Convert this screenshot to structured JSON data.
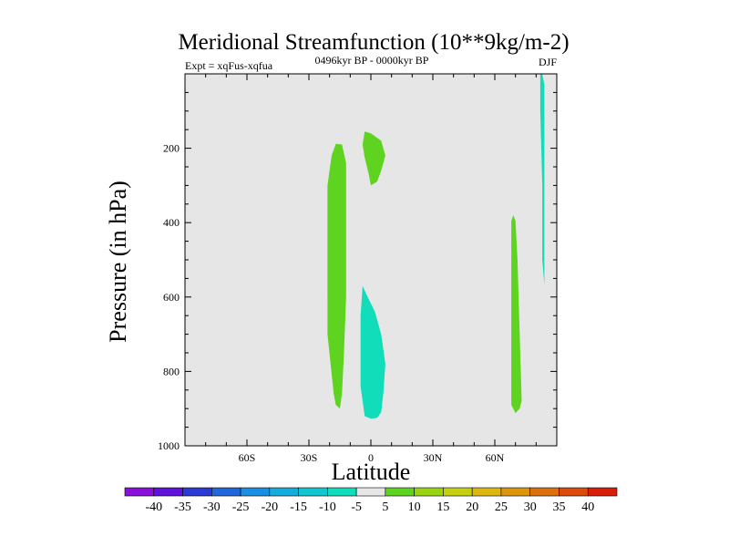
{
  "chart_data": {
    "type": "contour",
    "title": "Meridional Streamfunction (10**9kg/m-2)",
    "subtitle_left": "Expt = xqFus-xqfua",
    "subtitle_center": "0496kyr BP - 0000kyr BP",
    "subtitle_right": "DJF",
    "xlabel": "Latitude",
    "ylabel": "Pressure (in hPa)",
    "xlim": [
      -90,
      90
    ],
    "ylim": [
      1000,
      0
    ],
    "x_ticks": [
      {
        "value": -60,
        "label": "60S"
      },
      {
        "value": -30,
        "label": "30S"
      },
      {
        "value": 0,
        "label": "0"
      },
      {
        "value": 30,
        "label": "30N"
      },
      {
        "value": 60,
        "label": "60N"
      }
    ],
    "y_ticks": [
      {
        "value": 200,
        "label": "200"
      },
      {
        "value": 400,
        "label": "400"
      },
      {
        "value": 600,
        "label": "600"
      },
      {
        "value": 800,
        "label": "800"
      },
      {
        "value": 1000,
        "label": "1000"
      }
    ],
    "background_color": "#e6e6e6",
    "regions": [
      {
        "name": "positive-cell-south",
        "level": "5 to 10",
        "color": "#5ed420",
        "outline": [
          [
            -17,
            188
          ],
          [
            -14,
            190
          ],
          [
            -12,
            240
          ],
          [
            -12,
            400
          ],
          [
            -12,
            600
          ],
          [
            -13,
            750
          ],
          [
            -14,
            860
          ],
          [
            -15,
            900
          ],
          [
            -17,
            890
          ],
          [
            -18,
            860
          ],
          [
            -21,
            700
          ],
          [
            -21,
            500
          ],
          [
            -21,
            300
          ],
          [
            -19,
            220
          ]
        ]
      },
      {
        "name": "positive-cell-upper-equator",
        "level": "5 to 10",
        "color": "#5ed420",
        "outline": [
          [
            -3,
            155
          ],
          [
            0,
            160
          ],
          [
            5,
            180
          ],
          [
            7,
            220
          ],
          [
            5,
            260
          ],
          [
            3,
            290
          ],
          [
            0,
            300
          ],
          [
            -1,
            270
          ],
          [
            -3,
            225
          ],
          [
            -4,
            190
          ]
        ]
      },
      {
        "name": "negative-cell-equator",
        "level": "-10 to -5",
        "color": "#11ddbb",
        "outline": [
          [
            -4,
            570
          ],
          [
            -2,
            595
          ],
          [
            2,
            640
          ],
          [
            5,
            700
          ],
          [
            7,
            780
          ],
          [
            6,
            860
          ],
          [
            5,
            910
          ],
          [
            3,
            925
          ],
          [
            0,
            927
          ],
          [
            -3,
            920
          ],
          [
            -5,
            840
          ],
          [
            -5,
            650
          ]
        ]
      },
      {
        "name": "positive-cell-north",
        "level": "5 to 10",
        "color": "#5ed420",
        "outline": [
          [
            69,
            380
          ],
          [
            70,
            395
          ],
          [
            71,
            500
          ],
          [
            73,
            880
          ],
          [
            72,
            900
          ],
          [
            70,
            912
          ],
          [
            68,
            890
          ],
          [
            68,
            500
          ],
          [
            68,
            395
          ]
        ]
      },
      {
        "name": "negative-sliver-north",
        "level": "-10 to -5",
        "color": "#11ddbb",
        "outline": [
          [
            83,
            0
          ],
          [
            84,
            30
          ],
          [
            84,
            200
          ],
          [
            84,
            400
          ],
          [
            84,
            567
          ],
          [
            83,
            500
          ],
          [
            83,
            300
          ],
          [
            82,
            100
          ],
          [
            82,
            0
          ]
        ]
      }
    ],
    "colorbar": {
      "labels": [
        "-40",
        "-35",
        "-30",
        "-25",
        "-20",
        "-15",
        "-10",
        "-5",
        "5",
        "10",
        "15",
        "20",
        "25",
        "30",
        "35",
        "40"
      ],
      "colors": [
        "#8a12d8",
        "#5e12dc",
        "#2a3ad2",
        "#2266dc",
        "#1a8ee0",
        "#13acdc",
        "#12c6d0",
        "#11ddbb",
        "#e6e6e6",
        "#5ed420",
        "#98d410",
        "#c4d010",
        "#dcb80e",
        "#dc960c",
        "#dc700e",
        "#dc4a0c",
        "#d81e0a"
      ]
    }
  }
}
